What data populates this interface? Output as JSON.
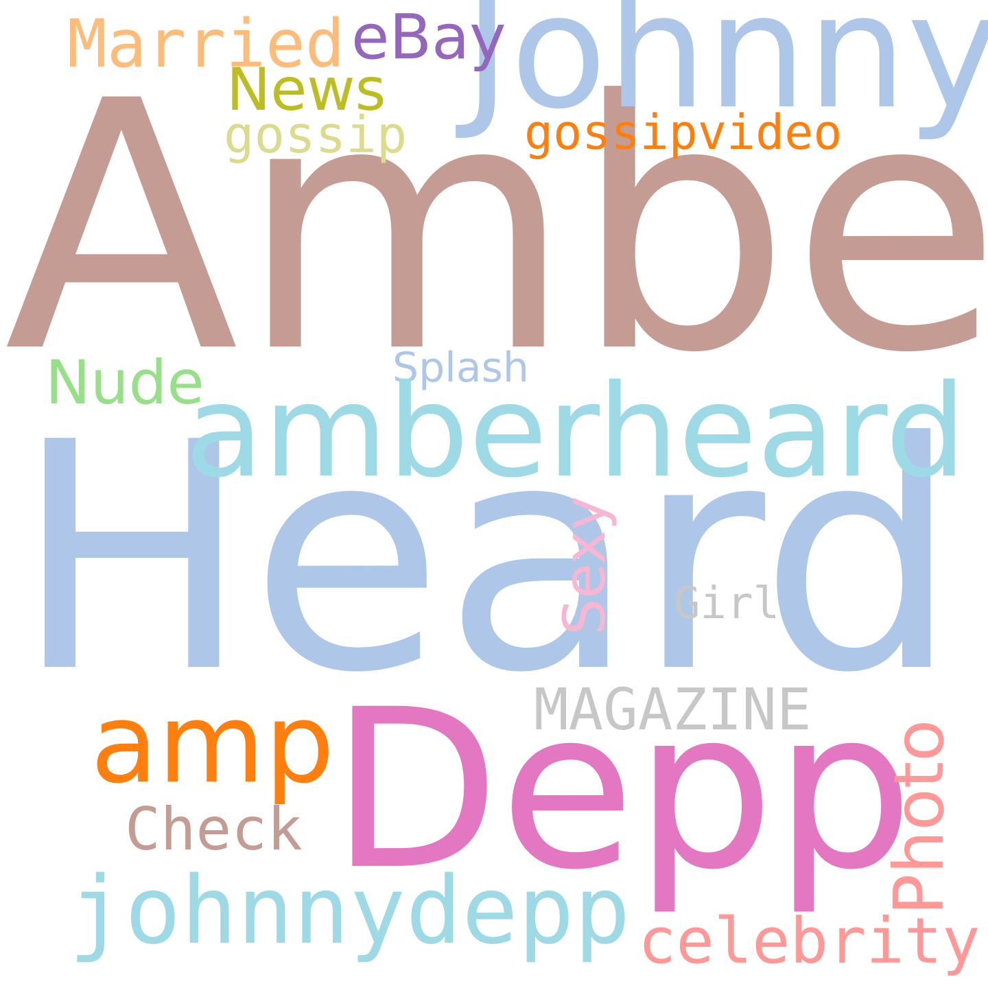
{
  "cloud": {
    "background": "#ffffff",
    "words": {
      "amber": {
        "text": "Amber",
        "color": "#c49c94"
      },
      "heard": {
        "text": "Heard",
        "color": "#aec7e8"
      },
      "johnny": {
        "text": "Johnny",
        "color": "#aec7e8"
      },
      "married": {
        "text": "Married",
        "color": "#ffbb78"
      },
      "ebay": {
        "text": "eBay",
        "color": "#9467bd"
      },
      "news": {
        "text": "News",
        "color": "#bcbd22"
      },
      "gossip": {
        "text": "gossip",
        "color": "#dbdb8d"
      },
      "gossipvideo": {
        "text": "gossipvideo",
        "color": "#ff7f0e"
      },
      "nude": {
        "text": "Nude",
        "color": "#98df8a"
      },
      "splash": {
        "text": "Splash",
        "color": "#aec7e8"
      },
      "amberheard": {
        "text": "amberheard",
        "color": "#9edae5"
      },
      "sexy": {
        "text": "Sexy",
        "color": "#f7b6d2",
        "orientation": "vertical"
      },
      "girl": {
        "text": "Girl",
        "color": "#c7c7c7"
      },
      "magazine": {
        "text": "MAGAZINE",
        "color": "#c7c7c7"
      },
      "amp": {
        "text": "amp",
        "color": "#ff7f0e"
      },
      "depp": {
        "text": "Depp",
        "color": "#e377c2"
      },
      "check": {
        "text": "Check",
        "color": "#c49c94"
      },
      "photo": {
        "text": "Photo",
        "color": "#ff9896",
        "orientation": "vertical"
      },
      "johnnydepp": {
        "text": "johnnydepp",
        "color": "#9edae5"
      },
      "celebrity": {
        "text": "celebrity",
        "color": "#ff9896"
      }
    }
  }
}
